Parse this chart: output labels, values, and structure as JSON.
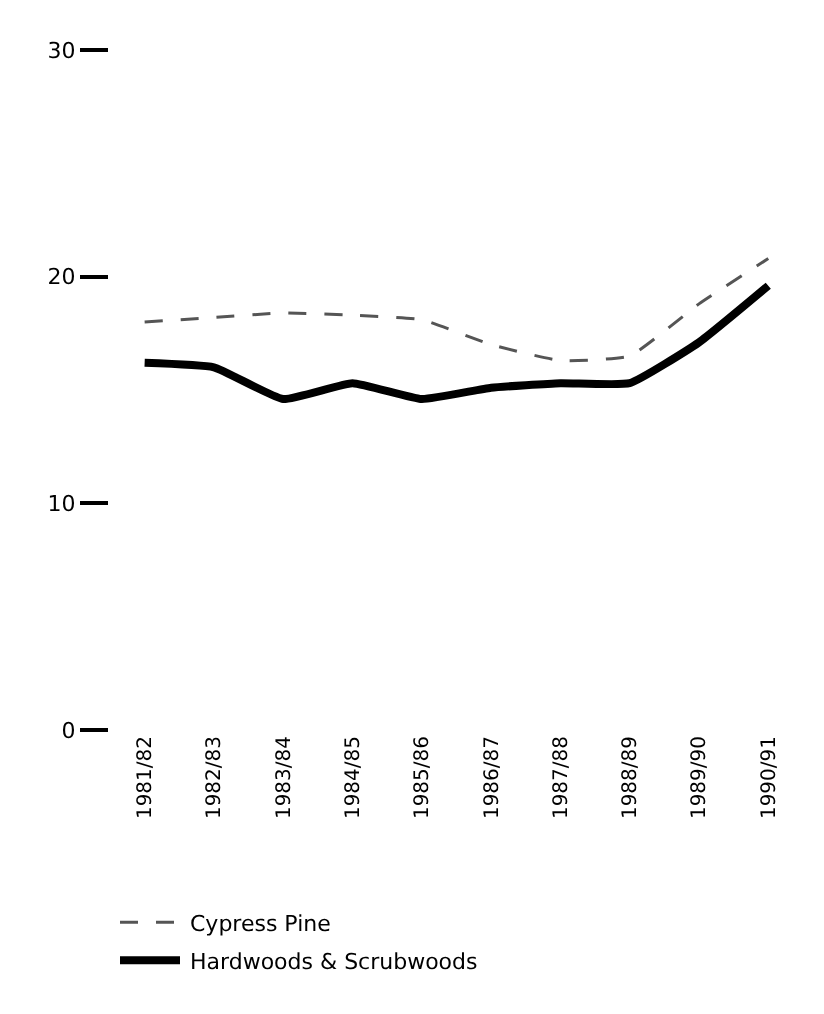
{
  "chart_data": {
    "type": "line",
    "categories": [
      "1981/82",
      "1982/83",
      "1983/84",
      "1984/85",
      "1985/86",
      "1986/87",
      "1987/88",
      "1988/89",
      "1989/90",
      "1990/91"
    ],
    "series": [
      {
        "name": "Cypress Pine",
        "color": "#555555",
        "line_style": "dashed",
        "values": [
          18.0,
          18.2,
          18.4,
          18.3,
          18.1,
          17.0,
          16.3,
          16.5,
          18.8,
          20.8
        ]
      },
      {
        "name": "Hardwoods & Scrubwoods",
        "color": "#000000",
        "line_style": "solid",
        "values": [
          16.2,
          16.0,
          14.6,
          15.3,
          14.6,
          15.1,
          15.3,
          15.3,
          17.1,
          19.6
        ]
      }
    ],
    "ylim": [
      0,
      30
    ],
    "yticks": [
      0,
      10,
      20,
      30
    ],
    "legend": "bottom",
    "marker": "none"
  }
}
